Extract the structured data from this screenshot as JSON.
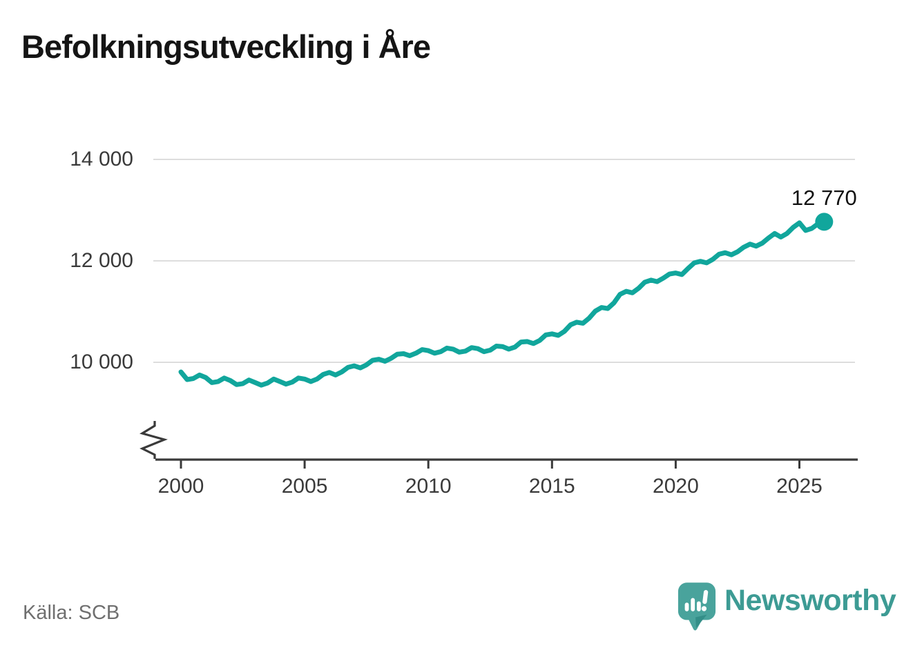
{
  "title": "Befolkningsutveckling i Åre",
  "source": "Källa: SCB",
  "branding": {
    "wordmark": "Newsworthy",
    "logo_icon": "speech-bubble-bar-chart-exclamation",
    "logo_color": "#3d9b94"
  },
  "colors": {
    "line": "#11a69c",
    "end_dot": "#11a69c",
    "grid": "#dddddd",
    "axis": "#3a3a3a",
    "tick_text": "#3a3a3a",
    "title_text": "#151515",
    "end_label_text": "#111111",
    "source_text": "#6f6f6f",
    "background": "#ffffff"
  },
  "chart_data": {
    "type": "line",
    "title": "Befolkningsutveckling i Åre",
    "xlabel": "",
    "ylabel": "",
    "x_start": 2000.0,
    "x_step": 0.25,
    "x_ticks": [
      2000,
      2005,
      2010,
      2015,
      2020,
      2025
    ],
    "y_ticks": [
      10000,
      12000,
      14000
    ],
    "xlim": [
      1998.9,
      2027.3
    ],
    "ylim": [
      9300,
      14300
    ],
    "grid": "horizontal-only",
    "y_axis_break": true,
    "legend": "none",
    "values": [
      9810,
      9660,
      9680,
      9750,
      9700,
      9600,
      9620,
      9690,
      9640,
      9560,
      9580,
      9650,
      9600,
      9550,
      9590,
      9670,
      9620,
      9570,
      9610,
      9690,
      9670,
      9620,
      9670,
      9760,
      9800,
      9750,
      9810,
      9900,
      9930,
      9890,
      9950,
      10040,
      10060,
      10020,
      10080,
      10160,
      10170,
      10130,
      10180,
      10250,
      10230,
      10180,
      10210,
      10280,
      10260,
      10200,
      10220,
      10290,
      10270,
      10210,
      10240,
      10320,
      10310,
      10260,
      10300,
      10400,
      10410,
      10370,
      10430,
      10540,
      10560,
      10530,
      10610,
      10740,
      10790,
      10770,
      10870,
      11010,
      11080,
      11060,
      11170,
      11340,
      11400,
      11370,
      11460,
      11580,
      11620,
      11590,
      11660,
      11740,
      11760,
      11730,
      11850,
      11960,
      11990,
      11960,
      12030,
      12130,
      12160,
      12120,
      12180,
      12270,
      12330,
      12290,
      12350,
      12450,
      12540,
      12470,
      12540,
      12660,
      12750,
      12600,
      12640,
      12730,
      12770
    ],
    "end_point": {
      "x": 2026.0,
      "value": 12770,
      "label": "12 770"
    }
  }
}
